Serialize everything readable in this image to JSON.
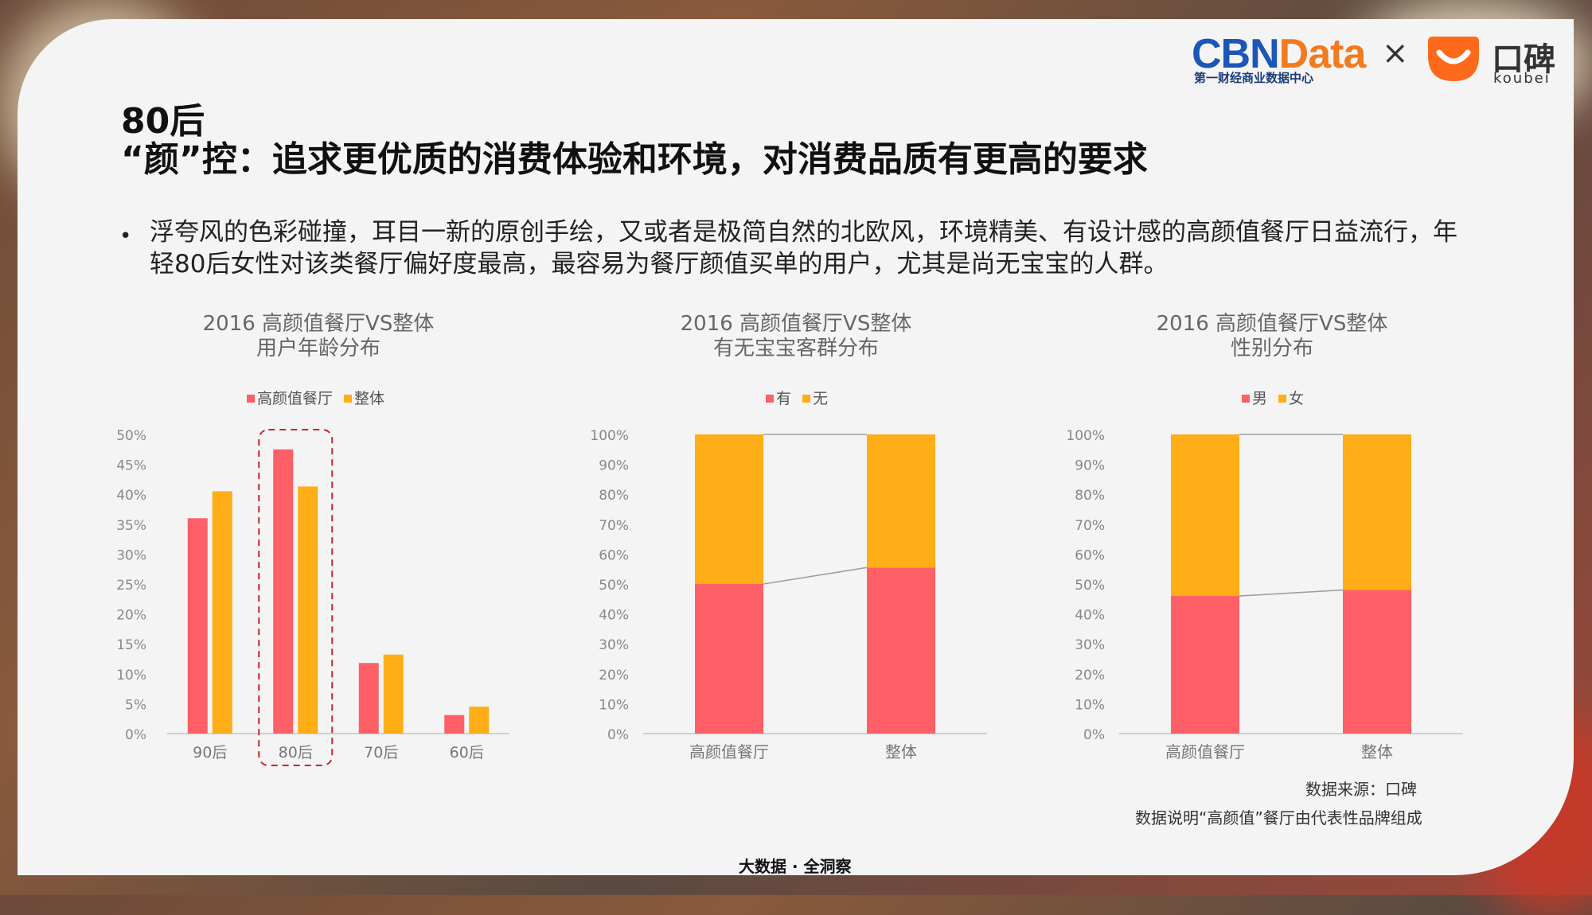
{
  "header": {
    "logo_cbn_main": "CBN",
    "logo_cbn_data": "Data",
    "logo_cbn_sub": "第一财经商业数据中心",
    "logo_x": "×",
    "logo_koubei_text": "口碑",
    "logo_koubei_en": "koubei"
  },
  "title": {
    "line1": "80后",
    "line2": "“颜”控：追求更优质的消费体验和环境，对消费品质有更高的要求"
  },
  "bullet": "浮夸风的色彩碰撞，耳目一新的原创手绘，又或者是极简自然的北欧风，环境精美、有设计感的高颜值餐厅日益流行，年轻80后女性对该类餐厅偏好度最高，最容易为餐厅颜值买单的用户，尤其是尚无宝宝的人群。",
  "colors": {
    "red": "#ff5f66",
    "orange": "#ffae17"
  },
  "chart_data": [
    {
      "type": "bar",
      "title": "2016 高颜值餐厅VS整体",
      "subtitle": "用户年龄分布",
      "categories": [
        "90后",
        "80后",
        "70后",
        "60后"
      ],
      "series": [
        {
          "name": "高颜值餐厅",
          "values": [
            36,
            47.5,
            11.8,
            3.1
          ]
        },
        {
          "name": "整体",
          "values": [
            40.5,
            41.3,
            13.2,
            4.5
          ]
        }
      ],
      "ylim": [
        0,
        50
      ],
      "yticks": [
        "0%",
        "5%",
        "10%",
        "15%",
        "20%",
        "25%",
        "30%",
        "35%",
        "40%",
        "45%",
        "50%"
      ],
      "legend": "top",
      "highlight_category": "80后"
    },
    {
      "type": "bar",
      "stacked": true,
      "title": "2016 高颜值餐厅VS整体",
      "subtitle": "有无宝宝客群分布",
      "categories": [
        "高颜值餐厅",
        "整体"
      ],
      "series": [
        {
          "name": "有",
          "values": [
            50,
            55.5
          ]
        },
        {
          "name": "无",
          "values": [
            50,
            44.5
          ]
        }
      ],
      "ylim": [
        0,
        100
      ],
      "yticks": [
        "0%",
        "10%",
        "20%",
        "30%",
        "40%",
        "50%",
        "60%",
        "70%",
        "80%",
        "90%",
        "100%"
      ],
      "legend": "top"
    },
    {
      "type": "bar",
      "stacked": true,
      "title": "2016 高颜值餐厅VS整体",
      "subtitle": "性别分布",
      "categories": [
        "高颜值餐厅",
        "整体"
      ],
      "series": [
        {
          "name": "男",
          "values": [
            46,
            48
          ]
        },
        {
          "name": "女",
          "values": [
            54,
            52
          ]
        }
      ],
      "ylim": [
        0,
        100
      ],
      "yticks": [
        "0%",
        "10%",
        "20%",
        "30%",
        "40%",
        "50%",
        "60%",
        "70%",
        "80%",
        "90%",
        "100%"
      ],
      "legend": "top"
    }
  ],
  "source": "数据来源：口碑",
  "note": "数据说明“高颜值”餐厅由代表性品牌组成",
  "footer": "大数据 · 全洞察"
}
